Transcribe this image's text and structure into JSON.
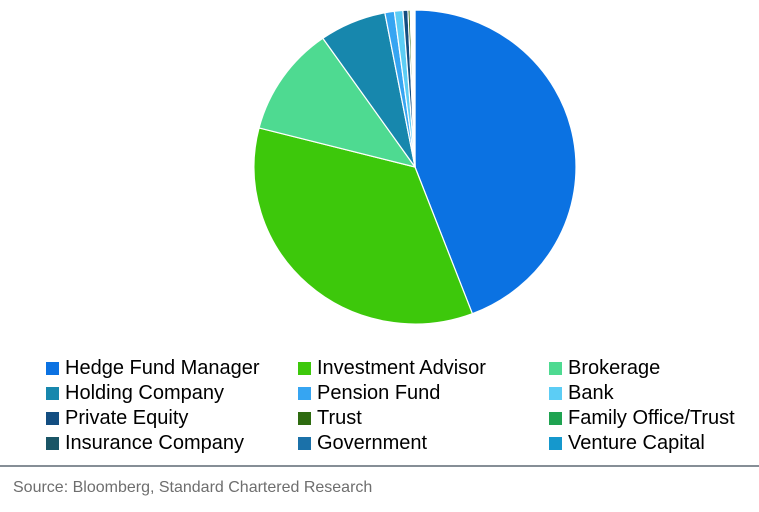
{
  "chart_data": {
    "type": "pie",
    "title": "",
    "legend_position": "bottom",
    "legend_columns": 3,
    "start_angle_deg": 0,
    "direction": "clockwise",
    "series": [
      {
        "name": "Hedge Fund Manager",
        "value": 44.2,
        "color": "#0B72E2"
      },
      {
        "name": "Investment Advisor",
        "value": 34.8,
        "color": "#3DC80B"
      },
      {
        "name": "Brokerage",
        "value": 11.3,
        "color": "#4EDA91"
      },
      {
        "name": "Holding Company",
        "value": 6.7,
        "color": "#1787AD"
      },
      {
        "name": "Pension Fund",
        "value": 0.95,
        "color": "#36A5F2"
      },
      {
        "name": "Bank",
        "value": 0.85,
        "color": "#5CCDF5"
      },
      {
        "name": "Private Equity",
        "value": 0.5,
        "color": "#134E81"
      },
      {
        "name": "Trust",
        "value": 0.22,
        "color": "#2E6B10"
      },
      {
        "name": "Family Office/Trust",
        "value": 0.12,
        "color": "#1FA351"
      },
      {
        "name": "Insurance Company",
        "value": 0.12,
        "color": "#1A5566"
      },
      {
        "name": "Government",
        "value": 0.12,
        "color": "#1B71A9"
      },
      {
        "name": "Venture Capital",
        "value": 0.12,
        "color": "#1598CD"
      }
    ]
  },
  "footer": {
    "source_text": "Source: Bloomberg, Standard Chartered Research"
  },
  "colors": {
    "background": "#FFFFFF",
    "slice_separator": "#FFFFFF",
    "divider": "#868E96",
    "source_text": "#6E6E6E",
    "legend_text": "#000000"
  }
}
